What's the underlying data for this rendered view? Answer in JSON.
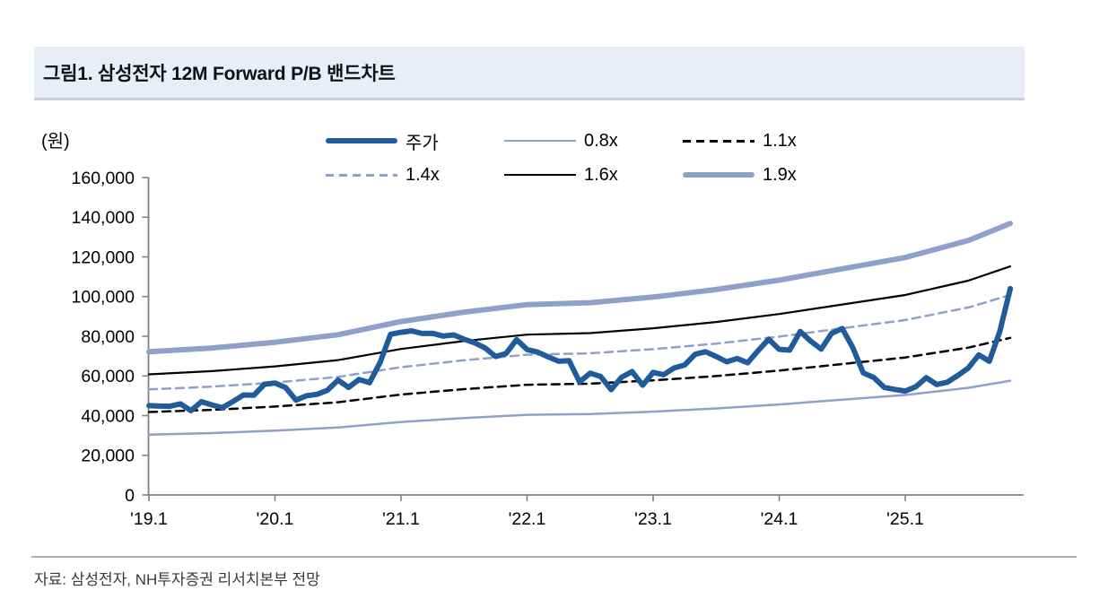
{
  "figure": {
    "title": "그림1. 삼성전자 12M Forward P/B 밴드차트",
    "unit_label": "(원)",
    "source": "자료: 삼성전자, NH투자증권 리서치본부 전망"
  },
  "colors": {
    "price_line": "#1F5C99",
    "band_light_blue": "#8FA0CB",
    "band_black": "#000000",
    "header_background": "#E9EEF6",
    "axis_gray": "#808080"
  },
  "chart_data": {
    "type": "line",
    "title": "그림1. 삼성전자 12M Forward P/B 밴드차트",
    "xlabel": "",
    "ylabel": "(원)",
    "ylim": [
      0,
      160000
    ],
    "grid": false,
    "legend_position": "top-center",
    "y_ticks": [
      {
        "v": 0,
        "label": "0"
      },
      {
        "v": 20000,
        "label": "20,000"
      },
      {
        "v": 40000,
        "label": "40,000"
      },
      {
        "v": 60000,
        "label": "60,000"
      },
      {
        "v": 80000,
        "label": "80,000"
      },
      {
        "v": 100000,
        "label": "100,000"
      },
      {
        "v": 120000,
        "label": "120,000"
      },
      {
        "v": 140000,
        "label": "140,000"
      },
      {
        "v": 160000,
        "label": "160,000"
      }
    ],
    "x_ticks": [
      {
        "t": 2019.0,
        "label": "'19.1"
      },
      {
        "t": 2020.0,
        "label": "'20.1"
      },
      {
        "t": 2021.0,
        "label": "'21.1"
      },
      {
        "t": 2022.0,
        "label": "'22.1"
      },
      {
        "t": 2023.0,
        "label": "'23.1"
      },
      {
        "t": 2024.0,
        "label": "'24.1"
      },
      {
        "t": 2025.0,
        "label": "'25.1"
      }
    ],
    "x_range": [
      2019.0,
      2025.833
    ],
    "legend": [
      {
        "label": "주가",
        "key": "price",
        "color": "#1F5C99",
        "style": "solid",
        "weight": 6
      },
      {
        "label": "0.8x",
        "key": "band-0.8",
        "color": "#8FA0CB",
        "style": "solid",
        "weight": 2.5
      },
      {
        "label": "1.1x",
        "key": "band-1.1",
        "color": "#000000",
        "style": "dashed",
        "weight": 2.5
      },
      {
        "label": "1.4x",
        "key": "band-1.4",
        "color": "#8FA0CB",
        "style": "dashed",
        "weight": 2.5
      },
      {
        "label": "1.6x",
        "key": "band-1.6",
        "color": "#000000",
        "style": "solid",
        "weight": 2.2
      },
      {
        "label": "1.9x",
        "key": "band-1.9",
        "color": "#8FA0CB",
        "style": "solid",
        "weight": 6
      }
    ],
    "price_series": {
      "name": "주가",
      "start_year": 2019,
      "start_month": 1,
      "frequency": "monthly",
      "unit": "KRW",
      "values": [
        45000,
        44800,
        44700,
        45900,
        42500,
        47000,
        45400,
        44000,
        47100,
        50400,
        50300,
        55800,
        56400,
        54200,
        47800,
        50000,
        50700,
        52800,
        57900,
        54200,
        58200,
        56600,
        66700,
        81000,
        82000,
        82700,
        81400,
        81500,
        80100,
        80700,
        78500,
        76700,
        74100,
        69800,
        71300,
        78300,
        73300,
        72000,
        69600,
        67400,
        67700,
        57000,
        61400,
        59700,
        53100,
        59400,
        62200,
        55300,
        61800,
        60600,
        64000,
        65500,
        70900,
        72200,
        69800,
        67100,
        68800,
        66600,
        72800,
        78500,
        73400,
        73000,
        82400,
        77500,
        73500,
        81500,
        83900,
        74300,
        61500,
        59200,
        54200,
        53200,
        52400,
        54500,
        59100,
        55700,
        56800,
        60200,
        64000,
        70600,
        67400,
        82400,
        104000
      ]
    },
    "pb_bands": {
      "multiples": [
        0.8,
        1.1,
        1.4,
        1.6,
        1.9
      ],
      "bps_12m_fwd_anchors": [
        [
          2019.0,
          38000
        ],
        [
          2019.5,
          39000
        ],
        [
          2020.0,
          40500
        ],
        [
          2020.5,
          42500
        ],
        [
          2021.0,
          46000
        ],
        [
          2021.5,
          48500
        ],
        [
          2022.0,
          50500
        ],
        [
          2022.5,
          51000
        ],
        [
          2023.0,
          52500
        ],
        [
          2023.5,
          54500
        ],
        [
          2024.0,
          57000
        ],
        [
          2024.5,
          60000
        ],
        [
          2025.0,
          63000
        ],
        [
          2025.5,
          67500
        ],
        [
          2025.833,
          72000
        ]
      ]
    }
  }
}
